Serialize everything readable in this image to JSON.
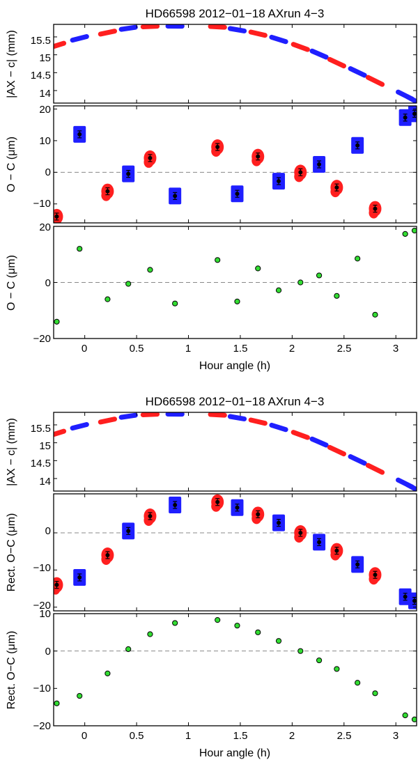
{
  "chart_data": [
    {
      "type": "multi-panel",
      "title": "HD66598 2012−01−18  AXrun 4−3",
      "xlabel": "Hour angle (h)",
      "xlim": [
        -0.3,
        3.2
      ],
      "xticks": [
        0,
        0.5,
        1,
        1.5,
        2,
        2.5,
        3
      ],
      "xtick_labels": [
        "0",
        "0.5",
        "1",
        "1.5",
        "2",
        "2.5",
        "3"
      ],
      "blocks": [
        {
          "hour_angle": -0.27,
          "color": "red",
          "ax_c_mm": 15.26,
          "oc_um": -14.0
        },
        {
          "hour_angle": -0.05,
          "color": "blue",
          "ax_c_mm": 15.46,
          "oc_um": 12.0
        },
        {
          "hour_angle": 0.22,
          "color": "red",
          "ax_c_mm": 15.62,
          "oc_um": -6.0
        },
        {
          "hour_angle": 0.42,
          "color": "blue",
          "ax_c_mm": 15.74,
          "oc_um": -0.5
        },
        {
          "hour_angle": 0.63,
          "color": "red",
          "ax_c_mm": 15.79,
          "oc_um": 4.5
        },
        {
          "hour_angle": 0.87,
          "color": "blue",
          "ax_c_mm": 15.8,
          "oc_um": -7.5
        },
        {
          "hour_angle": 1.28,
          "color": "red",
          "ax_c_mm": 15.78,
          "oc_um": 8.0
        },
        {
          "hour_angle": 1.47,
          "color": "blue",
          "ax_c_mm": 15.7,
          "oc_um": -6.8
        },
        {
          "hour_angle": 1.67,
          "color": "red",
          "ax_c_mm": 15.59,
          "oc_um": 5.0
        },
        {
          "hour_angle": 1.87,
          "color": "blue",
          "ax_c_mm": 15.43,
          "oc_um": -2.8
        },
        {
          "hour_angle": 2.08,
          "color": "red",
          "ax_c_mm": 15.22,
          "oc_um": 0.0
        },
        {
          "hour_angle": 2.26,
          "color": "blue",
          "ax_c_mm": 15.02,
          "oc_um": 2.5
        },
        {
          "hour_angle": 2.43,
          "color": "red",
          "ax_c_mm": 14.78,
          "oc_um": -4.8
        },
        {
          "hour_angle": 2.63,
          "color": "blue",
          "ax_c_mm": 14.52,
          "oc_um": 8.5
        },
        {
          "hour_angle": 2.8,
          "color": "red",
          "ax_c_mm": 14.27,
          "oc_um": -11.5
        },
        {
          "hour_angle": 3.09,
          "color": "blue",
          "ax_c_mm": 13.86,
          "oc_um": 17.3
        },
        {
          "hour_angle": 3.18,
          "color": "blue",
          "ax_c_mm": 13.72,
          "oc_um": 18.5
        }
      ],
      "panels": [
        {
          "ylabel": "|AX − c| (mm)",
          "ylim": [
            13.65,
            15.85
          ],
          "yticks": [
            14,
            14.5,
            15,
            15.5
          ],
          "ytick_labels": [
            "14",
            "14.5",
            "15",
            "15.5"
          ],
          "series": "ax_c_mm"
        },
        {
          "ylabel": "O − C (μm)",
          "ylim": [
            -16,
            21
          ],
          "yticks": [
            -10,
            0,
            10,
            20
          ],
          "ytick_labels": [
            "−10",
            "0",
            "10",
            "20"
          ],
          "series": "oc_um"
        },
        {
          "ylabel": "O − C (μm)",
          "ylim": [
            -20,
            20
          ],
          "yticks": [
            -20,
            0,
            20
          ],
          "ytick_labels": [
            "−20",
            "0",
            "20"
          ],
          "series": "oc_um"
        }
      ]
    },
    {
      "type": "multi-panel",
      "title": "HD66598 2012−01−18  AXrun 4−3",
      "xlabel": "Hour angle (h)",
      "xlim": [
        -0.3,
        3.2
      ],
      "xticks": [
        0,
        0.5,
        1,
        1.5,
        2,
        2.5,
        3
      ],
      "xtick_labels": [
        "0",
        "0.5",
        "1",
        "1.5",
        "2",
        "2.5",
        "3"
      ],
      "blocks": [
        {
          "hour_angle": -0.27,
          "color": "red",
          "ax_c_mm": 15.26,
          "rect_oc_um": -14.0
        },
        {
          "hour_angle": -0.05,
          "color": "blue",
          "ax_c_mm": 15.46,
          "rect_oc_um": -12.0
        },
        {
          "hour_angle": 0.22,
          "color": "red",
          "ax_c_mm": 15.62,
          "rect_oc_um": -6.0
        },
        {
          "hour_angle": 0.42,
          "color": "blue",
          "ax_c_mm": 15.74,
          "rect_oc_um": 0.5
        },
        {
          "hour_angle": 0.63,
          "color": "red",
          "ax_c_mm": 15.79,
          "rect_oc_um": 4.5
        },
        {
          "hour_angle": 0.87,
          "color": "blue",
          "ax_c_mm": 15.8,
          "rect_oc_um": 7.5
        },
        {
          "hour_angle": 1.28,
          "color": "red",
          "ax_c_mm": 15.78,
          "rect_oc_um": 8.3
        },
        {
          "hour_angle": 1.47,
          "color": "blue",
          "ax_c_mm": 15.7,
          "rect_oc_um": 6.8
        },
        {
          "hour_angle": 1.67,
          "color": "red",
          "ax_c_mm": 15.59,
          "rect_oc_um": 5.0
        },
        {
          "hour_angle": 1.87,
          "color": "blue",
          "ax_c_mm": 15.43,
          "rect_oc_um": 2.7
        },
        {
          "hour_angle": 2.08,
          "color": "red",
          "ax_c_mm": 15.22,
          "rect_oc_um": 0.0
        },
        {
          "hour_angle": 2.26,
          "color": "blue",
          "ax_c_mm": 15.02,
          "rect_oc_um": -2.5
        },
        {
          "hour_angle": 2.43,
          "color": "red",
          "ax_c_mm": 14.78,
          "rect_oc_um": -4.8
        },
        {
          "hour_angle": 2.63,
          "color": "blue",
          "ax_c_mm": 14.52,
          "rect_oc_um": -8.5
        },
        {
          "hour_angle": 2.8,
          "color": "red",
          "ax_c_mm": 14.27,
          "rect_oc_um": -11.3
        },
        {
          "hour_angle": 3.09,
          "color": "blue",
          "ax_c_mm": 13.86,
          "rect_oc_um": -17.2
        },
        {
          "hour_angle": 3.18,
          "color": "blue",
          "ax_c_mm": 13.72,
          "rect_oc_um": -18.3
        }
      ],
      "panels": [
        {
          "ylabel": "|AX − c| (mm)",
          "ylim": [
            13.65,
            15.85
          ],
          "yticks": [
            14,
            14.5,
            15,
            15.5
          ],
          "ytick_labels": [
            "14",
            "14.5",
            "15",
            "15.5"
          ],
          "series": "ax_c_mm"
        },
        {
          "ylabel": "Rect. O−C (μm)",
          "ylim": [
            -21,
            10.5
          ],
          "yticks": [
            -20,
            -10,
            0
          ],
          "ytick_labels": [
            "−20",
            "−10",
            "0"
          ],
          "series": "rect_oc_um"
        },
        {
          "ylabel": "Rect. O−C (μm)",
          "ylim": [
            -20,
            10
          ],
          "yticks": [
            -20,
            -10,
            0,
            10
          ],
          "ytick_labels": [
            "−20",
            "−10",
            "0",
            "10"
          ],
          "series": "rect_oc_um"
        }
      ]
    }
  ],
  "colors": {
    "red": "#ff1f1f",
    "blue": "#1f1fff",
    "green": "#33dd33",
    "axes": "#000000",
    "zero_line": "#888888"
  }
}
